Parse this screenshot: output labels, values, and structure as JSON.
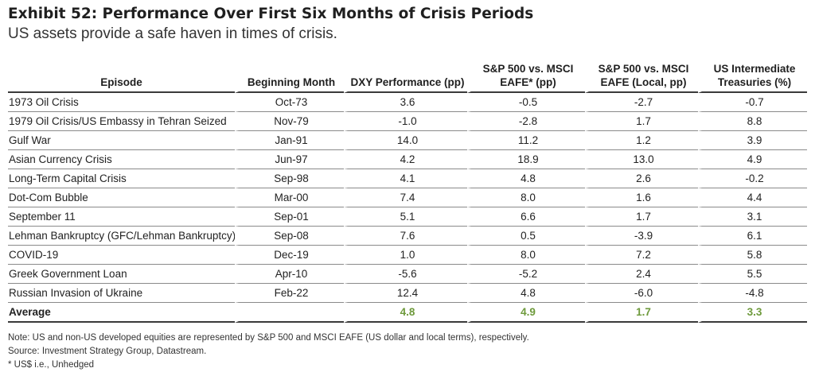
{
  "header": {
    "title": "Exhibit 52: Performance Over First Six Months of Crisis Periods",
    "subtitle": "US assets provide a safe haven in times of crisis."
  },
  "chart_data": {
    "type": "table",
    "title": "Exhibit 52: Performance Over First Six Months of Crisis Periods",
    "subtitle": "US assets provide a safe haven in times of crisis.",
    "columns": [
      "Episode",
      "Beginning Month",
      "DXY Performance (pp)",
      "S&P 500 vs. MSCI EAFE* (pp)",
      "S&P 500 vs. MSCI EAFE (Local, pp)",
      "US Intermediate Treasuries (%)"
    ],
    "rows": [
      [
        "1973 Oil Crisis",
        "Oct-73",
        "3.6",
        "-0.5",
        "-2.7",
        "-0.7"
      ],
      [
        "1979 Oil Crisis/US Embassy in Tehran Seized",
        "Nov-79",
        "-1.0",
        "-2.8",
        "1.7",
        "8.8"
      ],
      [
        "Gulf War",
        "Jan-91",
        "14.0",
        "11.2",
        "1.2",
        "3.9"
      ],
      [
        "Asian Currency Crisis",
        "Jun-97",
        "4.2",
        "18.9",
        "13.0",
        "4.9"
      ],
      [
        "Long-Term Capital Crisis",
        "Sep-98",
        "4.1",
        "4.8",
        "2.6",
        "-0.2"
      ],
      [
        "Dot-Com Bubble",
        "Mar-00",
        "7.4",
        "8.0",
        "1.6",
        "4.4"
      ],
      [
        "September 11",
        "Sep-01",
        "5.1",
        "6.6",
        "1.7",
        "3.1"
      ],
      [
        "Lehman Bankruptcy (GFC/Lehman Bankruptcy)",
        "Sep-08",
        "7.6",
        "0.5",
        "-3.9",
        "6.1"
      ],
      [
        "COVID-19",
        "Dec-19",
        "1.0",
        "8.0",
        "7.2",
        "5.8"
      ],
      [
        "Greek Government Loan",
        "Apr-10",
        "-5.6",
        "-5.2",
        "2.4",
        "5.5"
      ],
      [
        "Russian Invasion of Ukraine",
        "Feb-22",
        "12.4",
        "4.8",
        "-6.0",
        "-4.8"
      ]
    ],
    "average": {
      "label": "Average",
      "beginning_month": "",
      "values": [
        "4.8",
        "4.9",
        "1.7",
        "3.3"
      ],
      "color": "#6e9a3c"
    }
  },
  "notes": [
    "Note: US and non-US developed equities are represented by S&P 500 and MSCI EAFE (US dollar and local terms), respectively.",
    "Source: Investment Strategy Group, Datastream.",
    "* US$ i.e., Unhedged"
  ]
}
